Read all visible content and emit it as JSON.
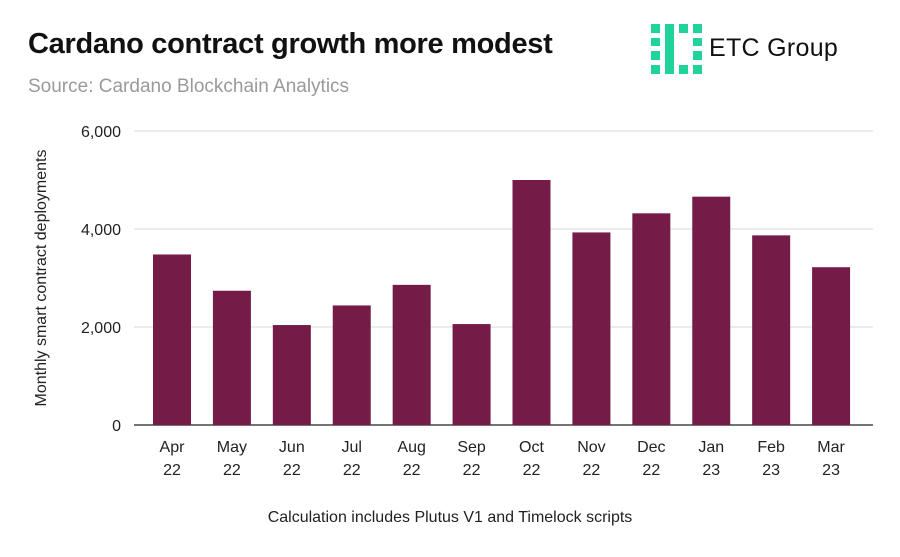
{
  "header": {
    "title": "Cardano contract growth more modest",
    "subtitle": "Source: Cardano Blockchain Analytics"
  },
  "logo": {
    "name": "ETC Group",
    "icon": "etc-group-logo-icon",
    "color": "#1fd39a"
  },
  "footnote": "Calculation includes Plutus V1 and Timelock scripts",
  "colors": {
    "bar": "#741c47",
    "grid": "#d9d9d9",
    "axis": "#222222"
  },
  "chart_data": {
    "type": "bar",
    "title": "Cardano contract growth more modest",
    "xlabel": "",
    "ylabel": "Monthly smart contract deployments",
    "categories": [
      [
        "Apr",
        "22"
      ],
      [
        "May",
        "22"
      ],
      [
        "Jun",
        "22"
      ],
      [
        "Jul",
        "22"
      ],
      [
        "Aug",
        "22"
      ],
      [
        "Sep",
        "22"
      ],
      [
        "Oct",
        "22"
      ],
      [
        "Nov",
        "22"
      ],
      [
        "Dec",
        "22"
      ],
      [
        "Jan",
        "23"
      ],
      [
        "Feb",
        "23"
      ],
      [
        "Mar",
        "23"
      ]
    ],
    "values": [
      3480,
      2740,
      2040,
      2440,
      2860,
      2060,
      5000,
      3930,
      4320,
      4660,
      3870,
      3220
    ],
    "ylim": [
      0,
      6000
    ],
    "yticks": [
      "0",
      "2,000",
      "4,000",
      "6,000"
    ],
    "ytick_values": [
      0,
      2000,
      4000,
      6000
    ],
    "grid": true
  }
}
